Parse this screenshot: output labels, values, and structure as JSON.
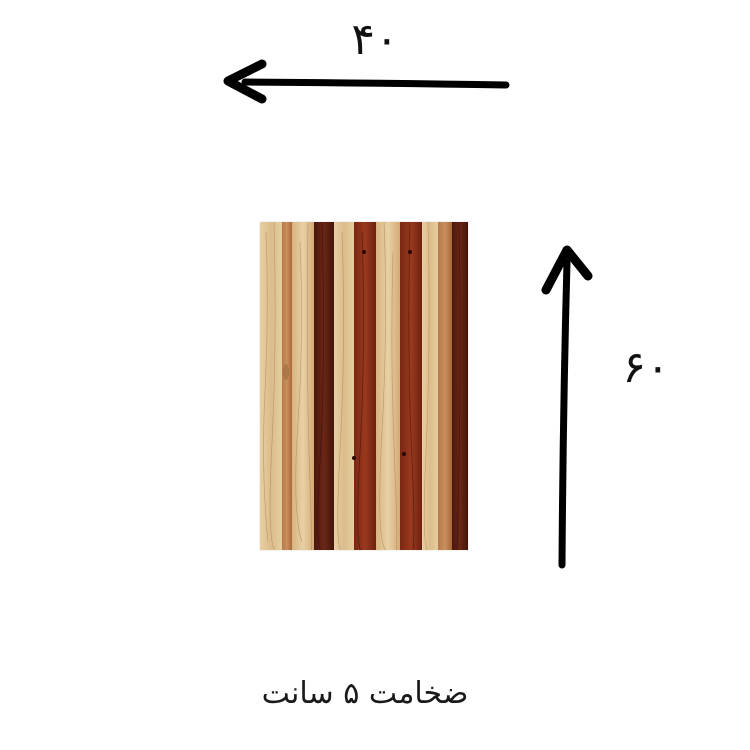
{
  "dimensions": {
    "width_label": "۴۰",
    "height_label": "۶۰"
  },
  "caption": "ضخامت ۵ سانت",
  "board": {
    "description_icon": "wooden-board-image",
    "colors": {
      "light_wood": "#e2c89a",
      "light_wood_alt": "#d8b683",
      "dark_wood": "#5a1e12",
      "red_wood": "#8a2d18",
      "medium_wood": "#b06a3a"
    }
  },
  "arrows": {
    "color": "#000000"
  }
}
